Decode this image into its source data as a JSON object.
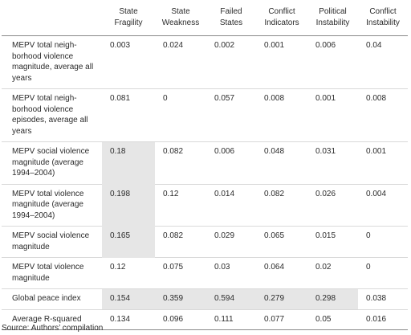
{
  "table": {
    "columns": [
      "",
      "State\nFragility",
      "State\nWeakness",
      "Failed\nStates",
      "Conflict\nIndicators",
      "Political\nInstability",
      "Conflict\nInstability"
    ],
    "rows": [
      {
        "label": "MEPV  total neigh-borhood violence magnitude, average all years",
        "values": [
          "0.003",
          "0.024",
          "0.002",
          "0.001",
          "0.006",
          "0.04"
        ],
        "highlight": []
      },
      {
        "label": "MEPV total neigh-borhood violence episodes, average all years",
        "values": [
          "0.081",
          "0",
          "0.057",
          "0.008",
          "0.001",
          "0.008"
        ],
        "highlight": []
      },
      {
        "label": "MEPV social violence magnitude (average 1994–2004)",
        "values": [
          "0.18",
          "0.082",
          "0.006",
          "0.048",
          "0.031",
          "0.001"
        ],
        "highlight": [
          0
        ]
      },
      {
        "label": "MEPV total violence magnitude (average 1994–2004)",
        "values": [
          "0.198",
          "0.12",
          "0.014",
          "0.082",
          "0.026",
          "0.004"
        ],
        "highlight": [
          0
        ]
      },
      {
        "label": "MEPV social violence magnitude",
        "values": [
          "0.165",
          "0.082",
          "0.029",
          "0.065",
          "0.015",
          "0"
        ],
        "highlight": [
          0
        ]
      },
      {
        "label": "MEPV total violence magnitude",
        "values": [
          "0.12",
          "0.075",
          "0.03",
          "0.064",
          "0.02",
          "0"
        ],
        "highlight": []
      },
      {
        "label": "Global peace index",
        "values": [
          "0.154",
          "0.359",
          "0.594",
          "0.279",
          "0.298",
          "0.038"
        ],
        "highlight": [
          0,
          1,
          2,
          3,
          4
        ]
      },
      {
        "label": "Average R-squared",
        "values": [
          "0.134",
          "0.096",
          "0.111",
          "0.077",
          "0.05",
          "0.016"
        ],
        "highlight": []
      }
    ]
  },
  "source": "Source: Authors’ compilation"
}
